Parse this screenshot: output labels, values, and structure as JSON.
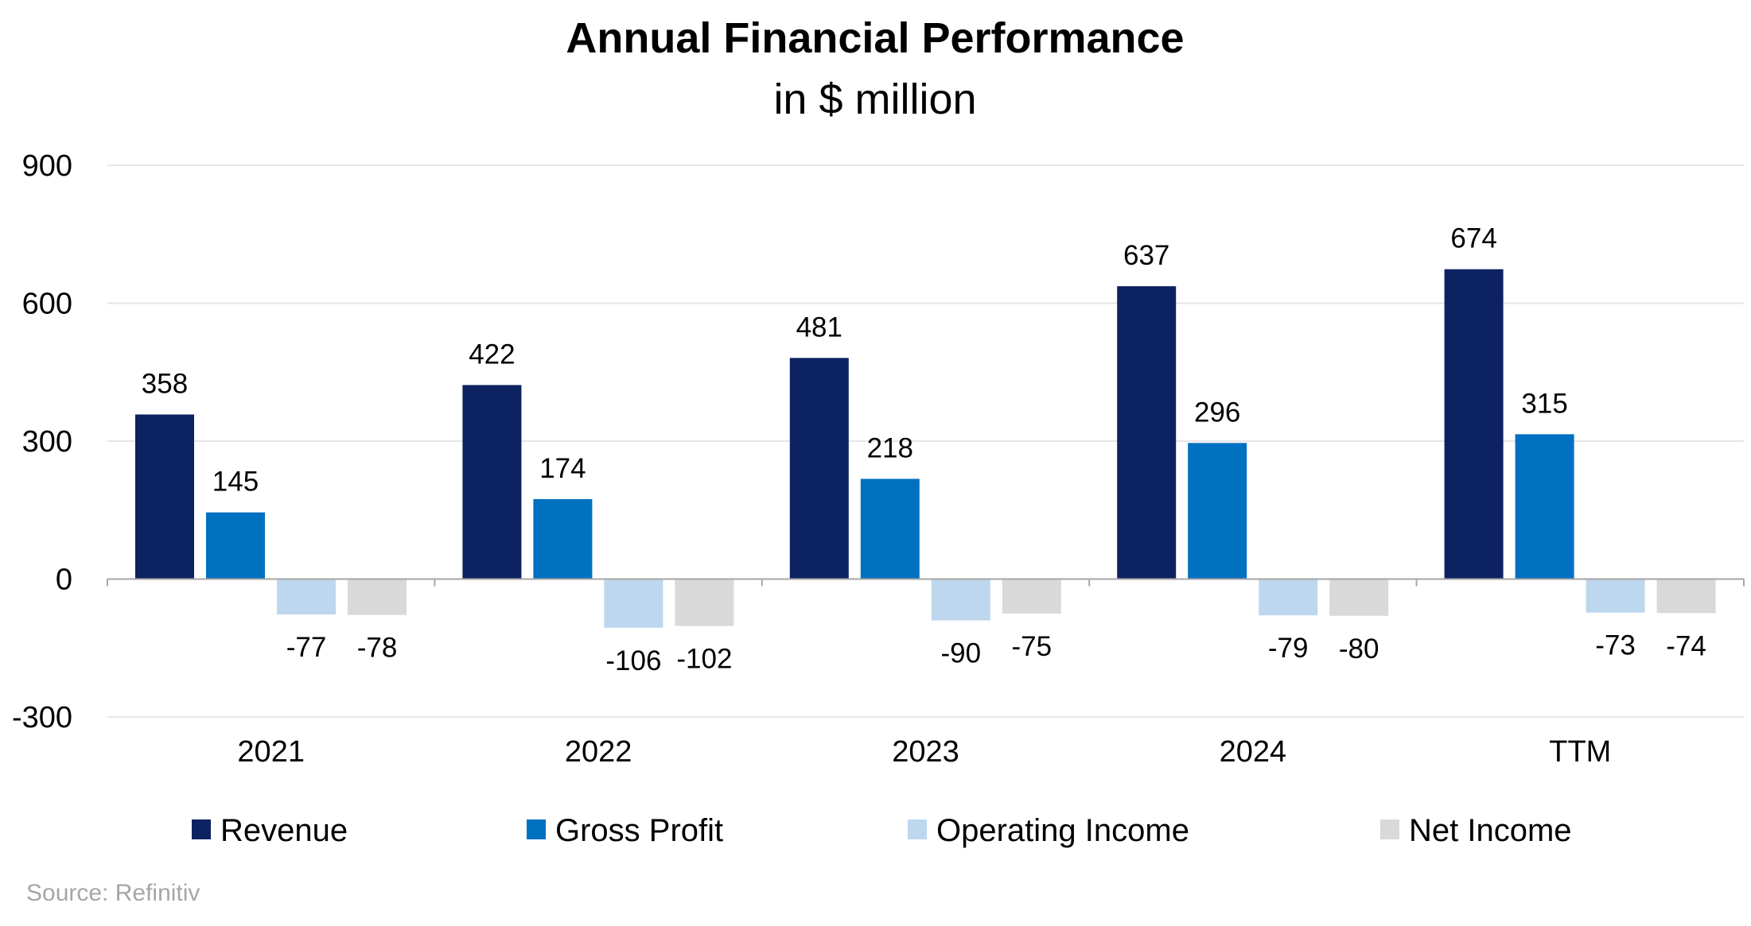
{
  "colors": {
    "Revenue": "#0d2260",
    "Gross Profit": "#0070c0",
    "Operating Income": "#bdd7ee",
    "Net Income": "#d9d9d9",
    "gridline": "#e6e6e6",
    "axis": "#a6a6a6"
  },
  "source": "Source: Refinitiv",
  "chart_data": {
    "type": "bar",
    "title": "Annual Financial Performance",
    "subtitle": "in $ million",
    "xlabel": "",
    "ylabel": "",
    "categories": [
      "2021",
      "2022",
      "2023",
      "2024",
      "TTM"
    ],
    "series": [
      {
        "name": "Revenue",
        "values": [
          358,
          422,
          481,
          637,
          674
        ]
      },
      {
        "name": "Gross Profit",
        "values": [
          145,
          174,
          218,
          296,
          315
        ]
      },
      {
        "name": "Operating Income",
        "values": [
          -77,
          -106,
          -90,
          -79,
          -73
        ]
      },
      {
        "name": "Net Income",
        "values": [
          -78,
          -102,
          -75,
          -80,
          -74
        ]
      }
    ],
    "ylim": [
      -300,
      900
    ],
    "yticks": [
      "-300",
      "0",
      "300",
      "600",
      "900"
    ],
    "grid": true,
    "legend_position": "bottom"
  }
}
